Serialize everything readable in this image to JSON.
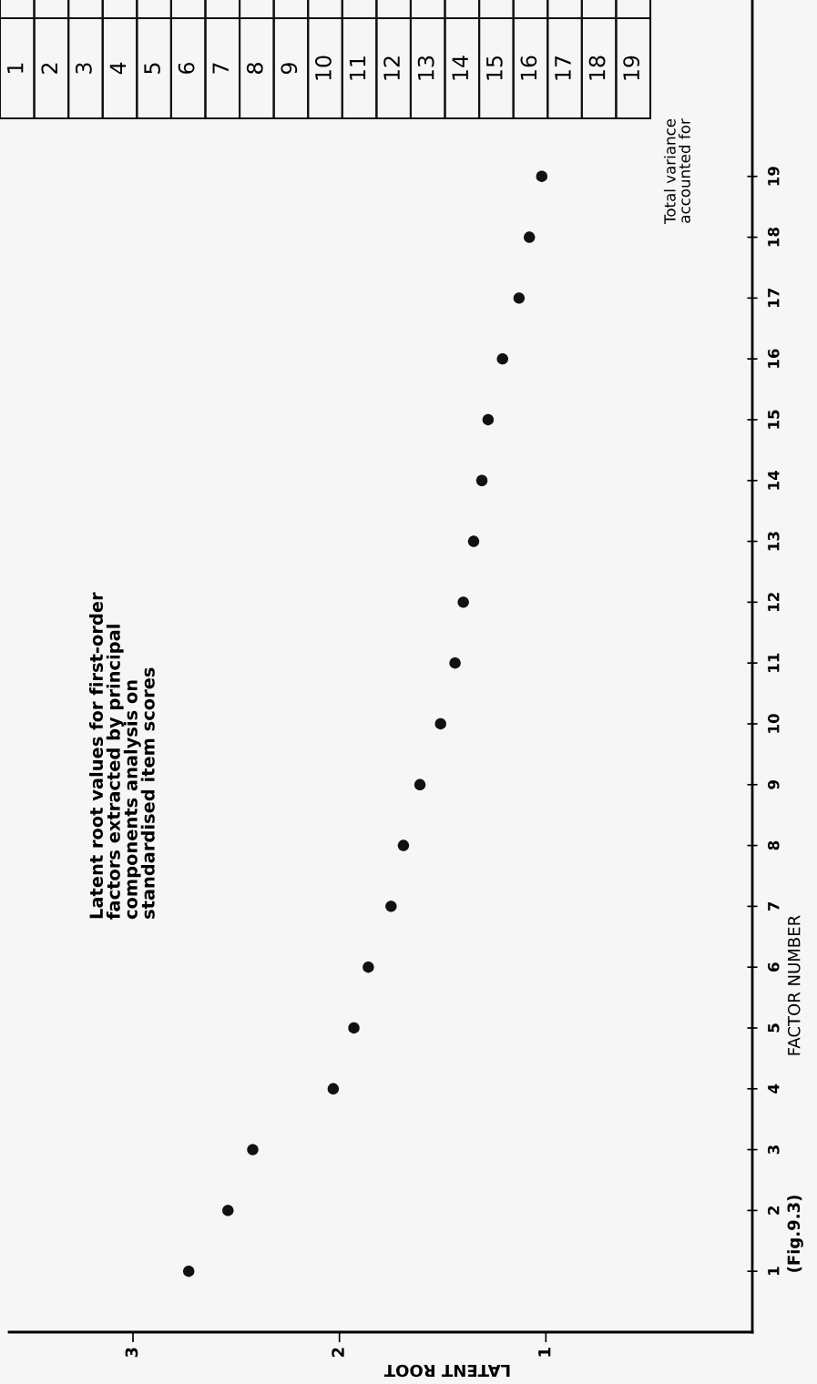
{
  "chart_data": [
    {
      "type": "scatter",
      "title": "Latent root values for first-order\nfactors extracted by principal\ncomponents analysis on\nstandardised item scores",
      "xlabel": "LATENT ROOT",
      "ylabel": "FACTOR NUMBER",
      "x": [
        2.73,
        2.54,
        2.42,
        2.03,
        1.93,
        1.86,
        1.75,
        1.69,
        1.61,
        1.51,
        1.44,
        1.4,
        1.35,
        1.31,
        1.28,
        1.21,
        1.13,
        1.08,
        1.02
      ],
      "values": [
        1,
        2,
        3,
        4,
        5,
        6,
        7,
        8,
        9,
        10,
        11,
        12,
        13,
        14,
        15,
        16,
        17,
        18,
        19
      ],
      "color": "#111111",
      "marker": "circle",
      "grid": false,
      "xlim": [
        3.6,
        0
      ],
      "xticks": [
        3,
        2,
        1
      ],
      "ylim": [
        0,
        21.9
      ],
      "yticks": [
        1,
        2,
        3,
        4,
        5,
        6,
        7,
        8,
        9,
        10,
        11,
        12,
        13,
        14,
        15,
        16,
        17,
        18,
        19
      ],
      "annotations": [
        "Total variance\naccounted for",
        "(Fig.9.3)",
        "1",
        "2",
        "3",
        "4",
        "5",
        "6",
        "7",
        "8",
        "9",
        "10",
        "11",
        "12",
        "13",
        "14",
        "15",
        "16",
        "17",
        "18",
        "19"
      ]
    }
  ]
}
